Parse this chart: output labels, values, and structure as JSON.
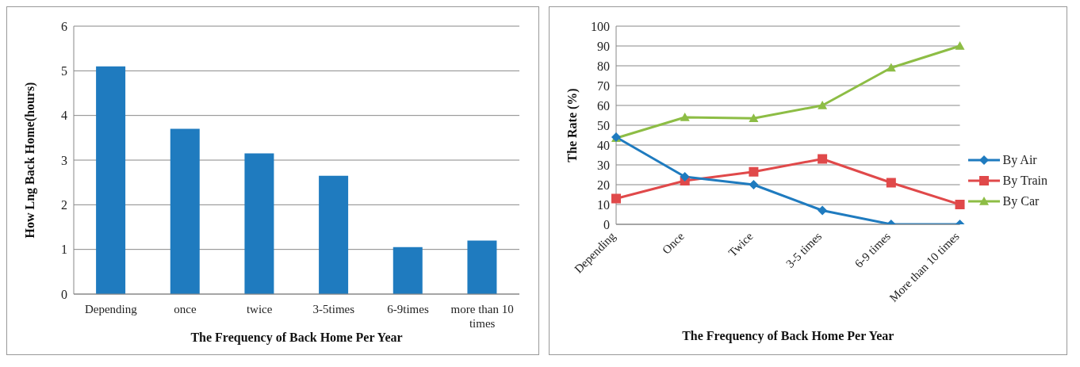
{
  "chart_data": [
    {
      "type": "bar",
      "xlabel": "The Frequency of Back Home Per Year",
      "ylabel": "How Lng Back Home(hours)",
      "categories": [
        "Depending",
        "once",
        "twice",
        "3-5times",
        "6-9times",
        "more than 10 times"
      ],
      "values": [
        5.1,
        3.7,
        3.15,
        2.65,
        1.05,
        1.2
      ],
      "color": "#1f7bbf",
      "ylim": [
        0,
        6
      ],
      "yticks": [
        0,
        1,
        2,
        3,
        4,
        5,
        6
      ],
      "grid": "y",
      "legend": false
    },
    {
      "type": "line",
      "xlabel": "The Frequency of Back Home Per Year",
      "ylabel": "The Rate (%)",
      "categories": [
        "Depending",
        "Once",
        "Twice",
        "3-5 times",
        "6-9 times",
        "More than 10 times"
      ],
      "series": [
        {
          "name": "By Air",
          "color": "#1f7bbf",
          "marker": "diamond",
          "values": [
            44,
            24,
            20,
            7,
            0,
            0
          ]
        },
        {
          "name": "By Train",
          "color": "#e0494a",
          "marker": "square",
          "values": [
            13,
            22,
            26.5,
            33,
            21,
            10
          ]
        },
        {
          "name": "By Car",
          "color": "#8dbd45",
          "marker": "triangle",
          "values": [
            43.5,
            54,
            53.5,
            60,
            79,
            90
          ]
        }
      ],
      "ylim": [
        0,
        100
      ],
      "yticks": [
        0,
        10,
        20,
        30,
        40,
        50,
        60,
        70,
        80,
        90,
        100
      ],
      "grid": "y",
      "legend": "right"
    }
  ]
}
